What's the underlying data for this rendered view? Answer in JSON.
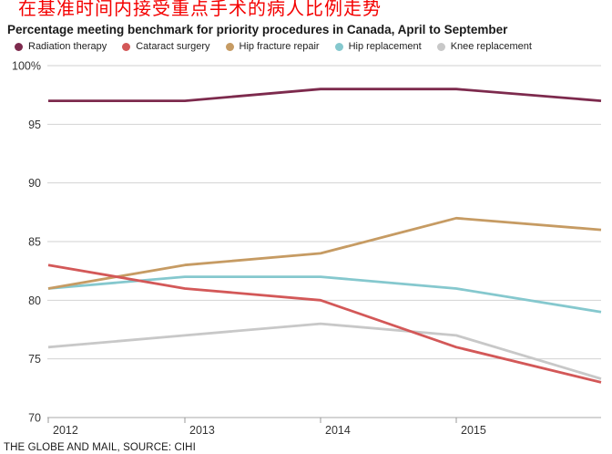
{
  "page": {
    "title_zh": "在基准时间内接受重点手术的病人比例走势",
    "subtitle": "Percentage meeting benchmark for priority procedures in Canada, April to September",
    "footer": "THE GLOBE AND MAIL, SOURCE: CIHI"
  },
  "colors": {
    "title_zh": "#f40000",
    "gridline": "#d2d2d2",
    "axis_line": "#a8a8a8",
    "tick": "#999999",
    "axis_text": "#333333"
  },
  "chart_data": {
    "type": "line",
    "title": "Percentage meeting benchmark for priority procedures in Canada, April to September",
    "x_tick_labels": [
      "2012",
      "2013",
      "2014",
      "2015"
    ],
    "x_points": [
      2012,
      2013,
      2014,
      2015,
      2016
    ],
    "x_note": "last data point at right edge is unlabeled (~2016)",
    "series": [
      {
        "name": "Radiation therapy",
        "color": "#7d2a4d",
        "values": [
          97,
          97,
          98,
          98,
          97
        ]
      },
      {
        "name": "Cataract surgery",
        "color": "#d35858",
        "values": [
          83,
          81,
          80,
          76,
          73
        ]
      },
      {
        "name": "Hip fracture repair",
        "color": "#c69b63",
        "values": [
          81,
          83,
          84,
          87,
          86
        ]
      },
      {
        "name": "Hip replacement",
        "color": "#85c8ce",
        "values": [
          81,
          82,
          82,
          81,
          79
        ]
      },
      {
        "name": "Knee replacement",
        "color": "#c8c8c8",
        "values": [
          76,
          77,
          78,
          77,
          73.3
        ]
      }
    ],
    "ylim": [
      70,
      100
    ],
    "yticks": [
      {
        "label": "100%",
        "value": 100
      },
      {
        "label": "95",
        "value": 95
      },
      {
        "label": "90",
        "value": 90
      },
      {
        "label": "85",
        "value": 85
      },
      {
        "label": "80",
        "value": 80
      },
      {
        "label": "75",
        "value": 75
      },
      {
        "label": "70",
        "value": 70
      }
    ],
    "grid": "horizontal",
    "legend_position": "top"
  }
}
